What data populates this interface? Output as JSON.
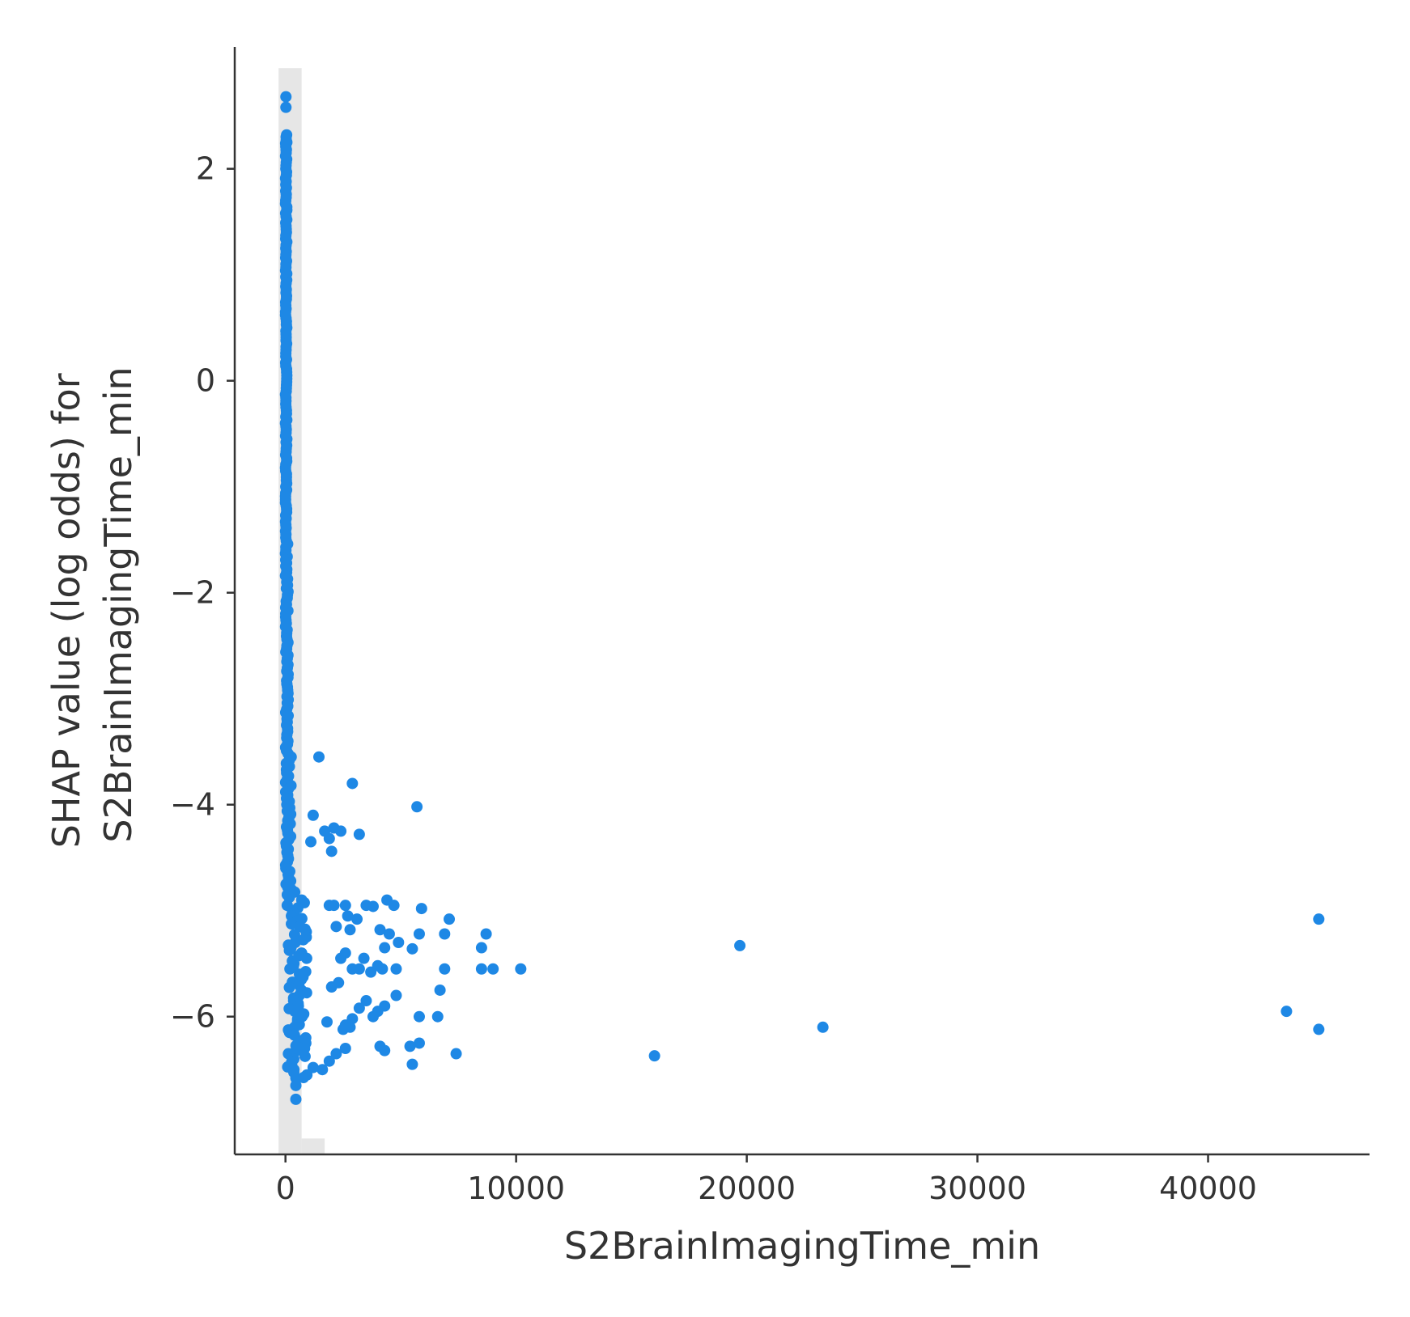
{
  "chart_data": {
    "type": "scatter",
    "title": "",
    "xlabel": "S2BrainImagingTime_min",
    "ylabel_lines": [
      "SHAP value (log odds) for",
      "S2BrainImagingTime_min"
    ],
    "xlim": [
      -2200,
      47000
    ],
    "ylim": [
      -7.3,
      3.15
    ],
    "x_ticks": [
      0,
      10000,
      20000,
      30000,
      40000
    ],
    "x_tick_labels": [
      "0",
      "10000",
      "20000",
      "30000",
      "40000"
    ],
    "y_ticks": [
      2,
      0,
      -2,
      -4,
      -6
    ],
    "y_tick_labels": [
      "2",
      "0",
      "−2",
      "−4",
      "−6"
    ],
    "grid": false,
    "point_color": "#1e88e5",
    "histogram_color": "#e6e6e6",
    "histogram": [
      {
        "x0": -300,
        "x1": 700,
        "y_top": 2.95
      },
      {
        "x0": 700,
        "x1": 1700,
        "y_top": -7.15
      }
    ],
    "series": [
      {
        "points": [
          [
            20,
            2.68
          ],
          [
            20,
            2.58
          ],
          [
            50,
            2.32
          ],
          [
            60,
            2.25
          ],
          [
            40,
            2.18
          ],
          [
            1450,
            -3.55
          ],
          [
            2900,
            -3.8
          ],
          [
            5700,
            -4.02
          ],
          [
            1200,
            -4.1
          ],
          [
            2100,
            -4.22
          ],
          [
            1700,
            -4.25
          ],
          [
            2400,
            -4.25
          ],
          [
            3200,
            -4.28
          ],
          [
            1900,
            -4.32
          ],
          [
            1100,
            -4.35
          ],
          [
            2000,
            -4.44
          ],
          [
            3500,
            -4.95
          ],
          [
            3800,
            -4.96
          ],
          [
            4400,
            -4.9
          ],
          [
            4700,
            -4.95
          ],
          [
            5900,
            -4.98
          ],
          [
            2600,
            -4.95
          ],
          [
            1900,
            -4.95
          ],
          [
            2100,
            -4.95
          ],
          [
            2700,
            -5.05
          ],
          [
            3100,
            -5.08
          ],
          [
            7100,
            -5.08
          ],
          [
            2200,
            -5.15
          ],
          [
            2800,
            -5.18
          ],
          [
            4100,
            -5.18
          ],
          [
            4500,
            -5.22
          ],
          [
            5800,
            -5.22
          ],
          [
            6900,
            -5.22
          ],
          [
            8700,
            -5.22
          ],
          [
            4900,
            -5.3
          ],
          [
            5500,
            -5.36
          ],
          [
            8500,
            -5.35
          ],
          [
            4300,
            -5.35
          ],
          [
            3400,
            -5.45
          ],
          [
            2400,
            -5.45
          ],
          [
            2600,
            -5.4
          ],
          [
            2900,
            -5.55
          ],
          [
            3200,
            -5.55
          ],
          [
            4000,
            -5.52
          ],
          [
            3700,
            -5.58
          ],
          [
            4200,
            -5.55
          ],
          [
            4800,
            -5.55
          ],
          [
            6900,
            -5.55
          ],
          [
            8500,
            -5.55
          ],
          [
            9000,
            -5.55
          ],
          [
            10200,
            -5.55
          ],
          [
            2300,
            -5.68
          ],
          [
            2000,
            -5.72
          ],
          [
            6700,
            -5.75
          ],
          [
            4800,
            -5.8
          ],
          [
            3500,
            -5.85
          ],
          [
            4300,
            -5.9
          ],
          [
            3200,
            -5.92
          ],
          [
            4000,
            -5.95
          ],
          [
            5800,
            -6.0
          ],
          [
            6600,
            -6.0
          ],
          [
            3800,
            -6.0
          ],
          [
            2900,
            -6.02
          ],
          [
            2600,
            -6.08
          ],
          [
            1800,
            -6.05
          ],
          [
            2500,
            -6.12
          ],
          [
            2800,
            -6.1
          ],
          [
            4100,
            -6.28
          ],
          [
            4300,
            -6.32
          ],
          [
            5400,
            -6.28
          ],
          [
            5800,
            -6.25
          ],
          [
            7400,
            -6.35
          ],
          [
            2200,
            -6.35
          ],
          [
            2600,
            -6.3
          ],
          [
            5500,
            -6.45
          ],
          [
            1600,
            -6.5
          ],
          [
            1900,
            -6.42
          ],
          [
            1200,
            -6.48
          ],
          [
            450,
            -6.58
          ],
          [
            450,
            -6.65
          ],
          [
            450,
            -6.78
          ],
          [
            16000,
            -6.37
          ],
          [
            19700,
            -5.33
          ],
          [
            23300,
            -6.1
          ],
          [
            43400,
            -5.95
          ],
          [
            44800,
            -5.08
          ],
          [
            44800,
            -6.12
          ]
        ]
      }
    ]
  }
}
